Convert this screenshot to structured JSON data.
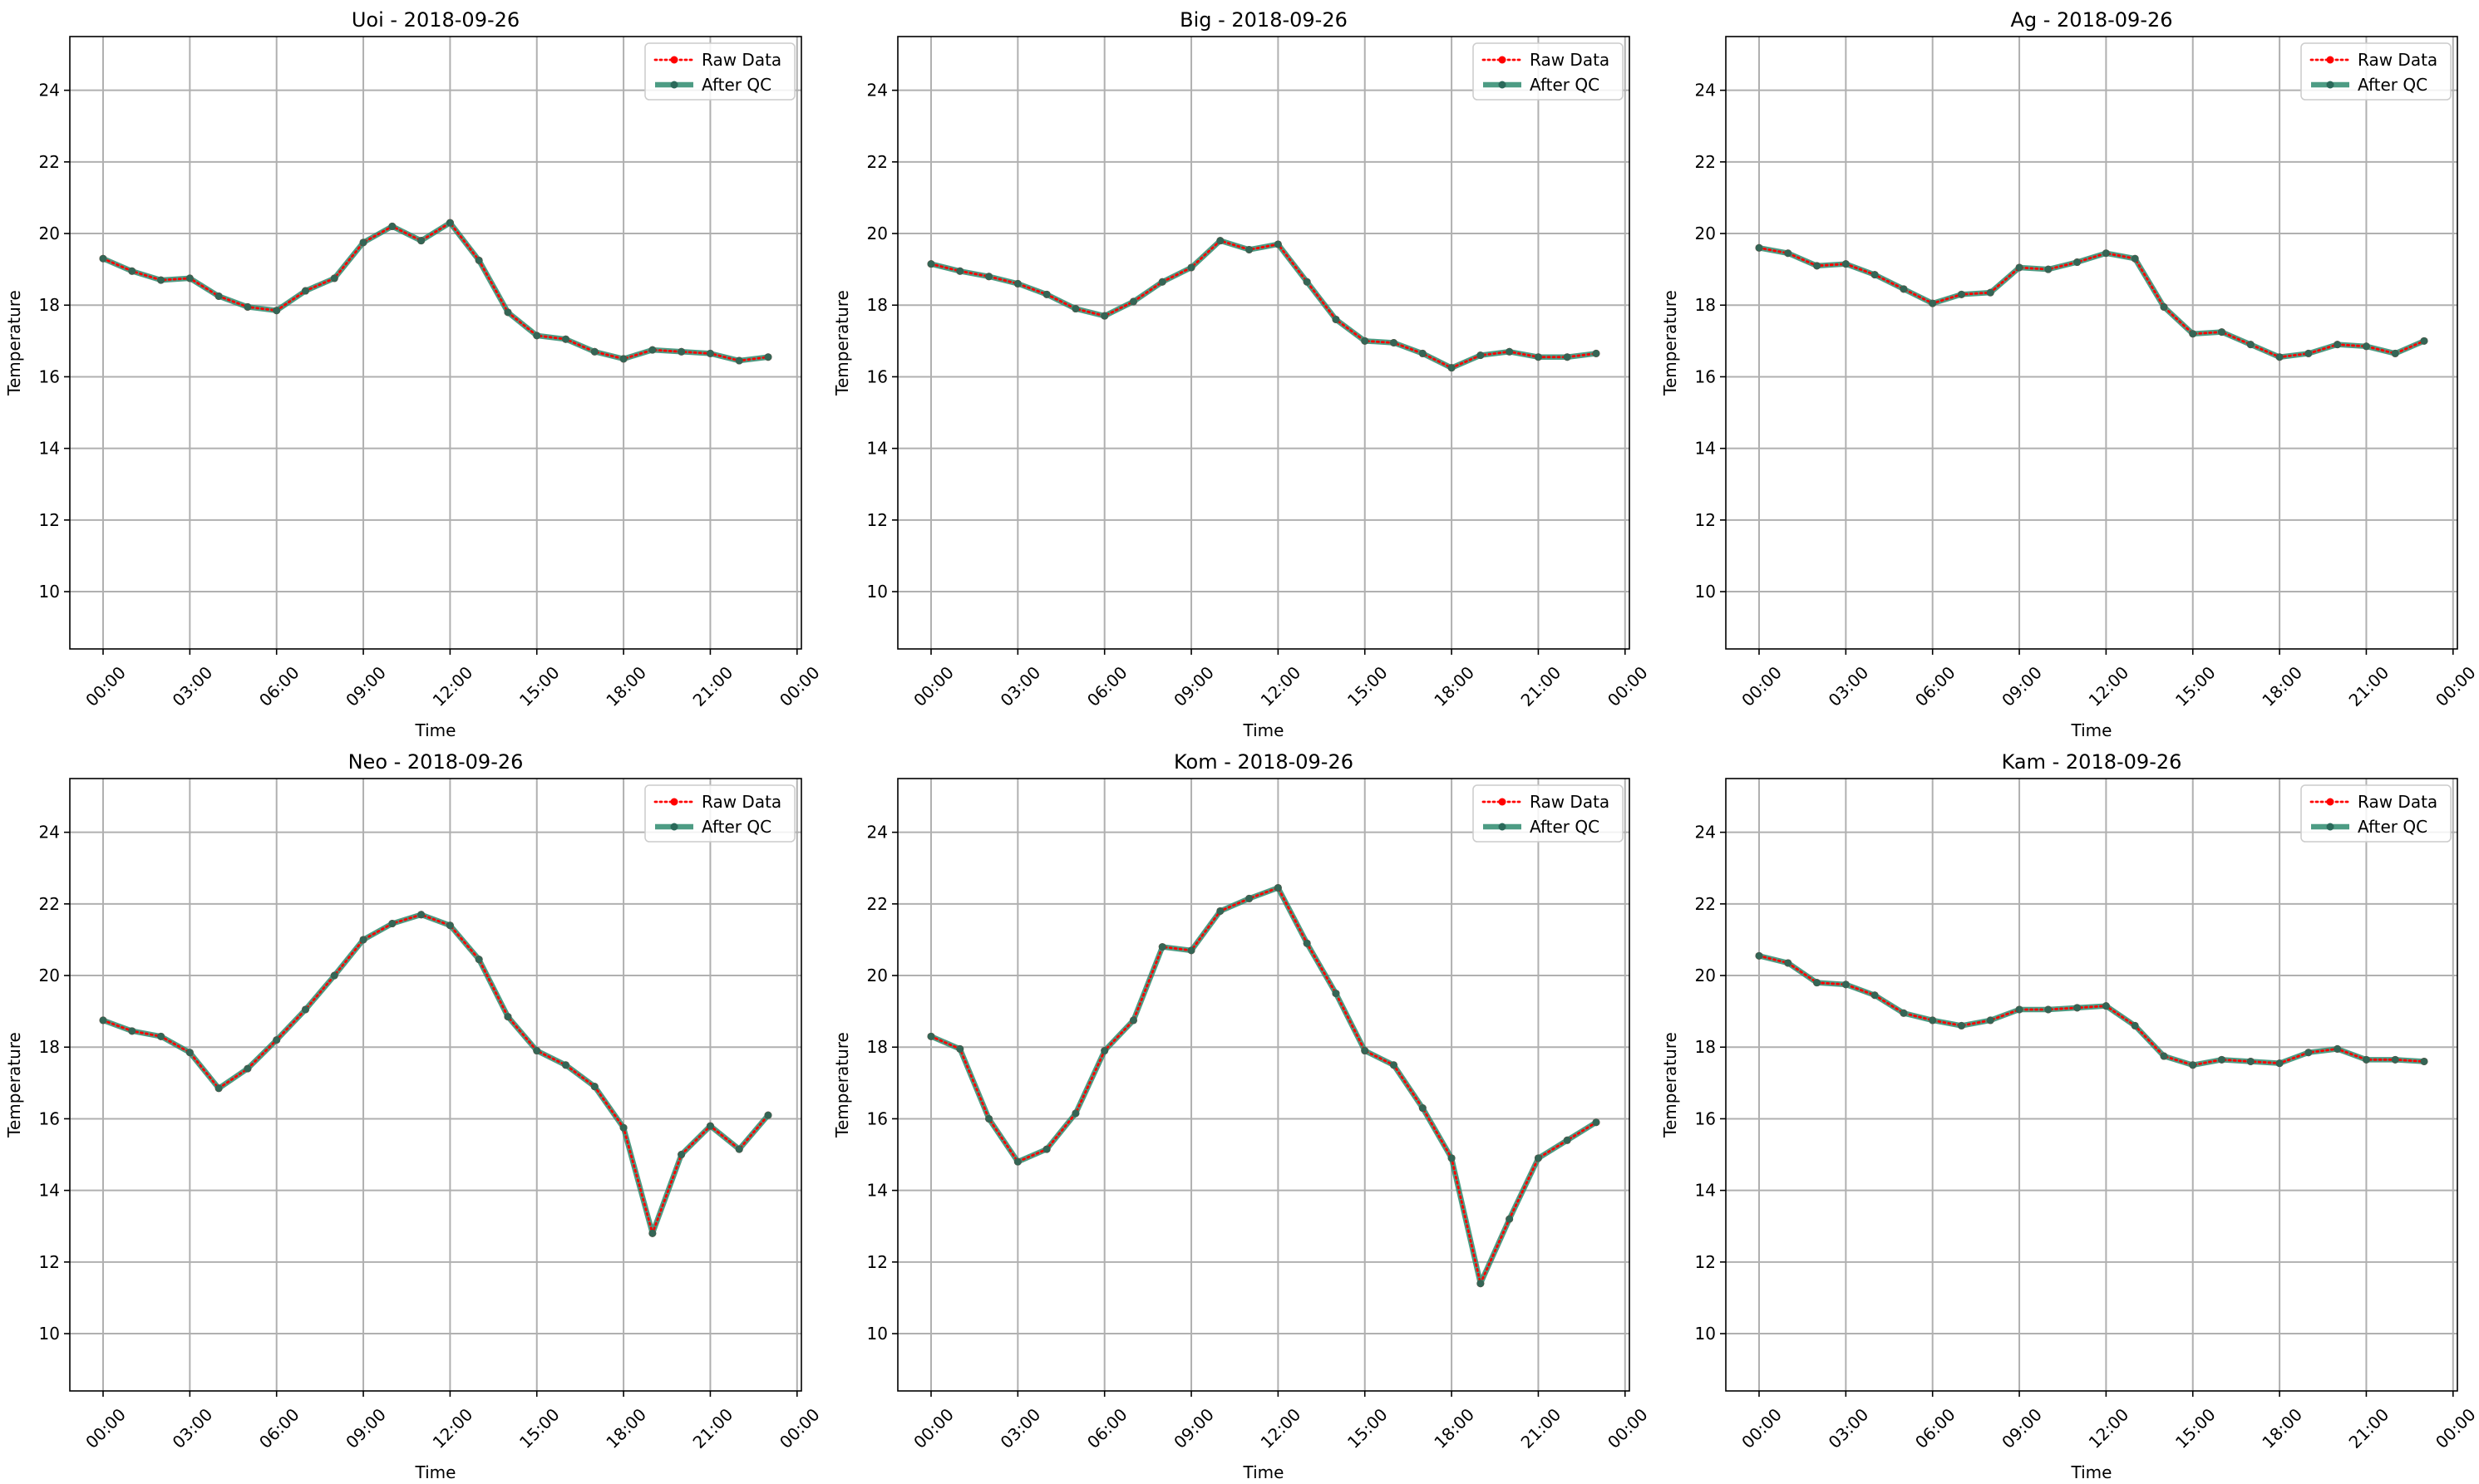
{
  "figure": {
    "panels": [
      "Uoi",
      "Big",
      "Ag",
      "Neo",
      "Kom",
      "Kam"
    ]
  },
  "chart_data": [
    {
      "type": "line",
      "title": "Uoi - 2018-09-26",
      "xlabel": "Time",
      "ylabel": "Temperature",
      "ylim": [
        8.4,
        25.5
      ],
      "xlim_hours": [
        -1.15,
        24.15
      ],
      "yticks": [
        "10",
        "12",
        "14",
        "16",
        "18",
        "20",
        "22",
        "24"
      ],
      "xticks": [
        "00:00",
        "03:00",
        "06:00",
        "09:00",
        "12:00",
        "15:00",
        "18:00",
        "21:00",
        "00:00"
      ],
      "grid": true,
      "legend": {
        "position": "upper-right",
        "entries": [
          "Raw Data",
          "After QC"
        ]
      },
      "x": [
        "00:00",
        "01:00",
        "02:00",
        "03:00",
        "04:00",
        "05:00",
        "06:00",
        "07:00",
        "08:00",
        "09:00",
        "10:00",
        "11:00",
        "12:00",
        "13:00",
        "14:00",
        "15:00",
        "16:00",
        "17:00",
        "18:00",
        "19:00",
        "20:00",
        "21:00",
        "22:00",
        "23:00"
      ],
      "series": [
        {
          "name": "Raw Data",
          "color": "#ff0000",
          "style": "dotted",
          "values": [
            19.3,
            18.95,
            18.7,
            18.75,
            18.25,
            17.95,
            17.85,
            18.4,
            18.75,
            19.75,
            20.2,
            19.8,
            20.3,
            19.25,
            17.8,
            17.15,
            17.05,
            16.7,
            16.5,
            16.75,
            16.7,
            16.65,
            16.45,
            16.55
          ]
        },
        {
          "name": "After QC",
          "color": "#2e8b6e",
          "style": "solid",
          "values": [
            19.3,
            18.95,
            18.7,
            18.75,
            18.25,
            17.95,
            17.85,
            18.4,
            18.75,
            19.75,
            20.2,
            19.8,
            20.3,
            19.25,
            17.8,
            17.15,
            17.05,
            16.7,
            16.5,
            16.75,
            16.7,
            16.65,
            16.45,
            16.55
          ]
        }
      ]
    },
    {
      "type": "line",
      "title": "Big - 2018-09-26",
      "xlabel": "Time",
      "ylabel": "Temperature",
      "ylim": [
        8.4,
        25.5
      ],
      "xlim_hours": [
        -1.15,
        24.15
      ],
      "yticks": [
        "10",
        "12",
        "14",
        "16",
        "18",
        "20",
        "22",
        "24"
      ],
      "xticks": [
        "00:00",
        "03:00",
        "06:00",
        "09:00",
        "12:00",
        "15:00",
        "18:00",
        "21:00",
        "00:00"
      ],
      "grid": true,
      "legend": {
        "position": "upper-right",
        "entries": [
          "Raw Data",
          "After QC"
        ]
      },
      "x": [
        "00:00",
        "01:00",
        "02:00",
        "03:00",
        "04:00",
        "05:00",
        "06:00",
        "07:00",
        "08:00",
        "09:00",
        "10:00",
        "11:00",
        "12:00",
        "13:00",
        "14:00",
        "15:00",
        "16:00",
        "17:00",
        "18:00",
        "19:00",
        "20:00",
        "21:00",
        "22:00",
        "23:00"
      ],
      "series": [
        {
          "name": "Raw Data",
          "color": "#ff0000",
          "style": "dotted",
          "values": [
            19.15,
            18.95,
            18.8,
            18.6,
            18.3,
            17.9,
            17.7,
            18.1,
            18.65,
            19.05,
            19.8,
            19.55,
            19.7,
            18.65,
            17.6,
            17.0,
            16.95,
            16.65,
            16.25,
            16.6,
            16.7,
            16.55,
            16.55,
            16.65
          ]
        },
        {
          "name": "After QC",
          "color": "#2e8b6e",
          "style": "solid",
          "values": [
            19.15,
            18.95,
            18.8,
            18.6,
            18.3,
            17.9,
            17.7,
            18.1,
            18.65,
            19.05,
            19.8,
            19.55,
            19.7,
            18.65,
            17.6,
            17.0,
            16.95,
            16.65,
            16.25,
            16.6,
            16.7,
            16.55,
            16.55,
            16.65
          ]
        }
      ]
    },
    {
      "type": "line",
      "title": "Ag - 2018-09-26",
      "xlabel": "Time",
      "ylabel": "Temperature",
      "ylim": [
        8.4,
        25.5
      ],
      "xlim_hours": [
        -1.15,
        24.15
      ],
      "yticks": [
        "10",
        "12",
        "14",
        "16",
        "18",
        "20",
        "22",
        "24"
      ],
      "xticks": [
        "00:00",
        "03:00",
        "06:00",
        "09:00",
        "12:00",
        "15:00",
        "18:00",
        "21:00",
        "00:00"
      ],
      "grid": true,
      "legend": {
        "position": "upper-right",
        "entries": [
          "Raw Data",
          "After QC"
        ]
      },
      "x": [
        "00:00",
        "01:00",
        "02:00",
        "03:00",
        "04:00",
        "05:00",
        "06:00",
        "07:00",
        "08:00",
        "09:00",
        "10:00",
        "11:00",
        "12:00",
        "13:00",
        "14:00",
        "15:00",
        "16:00",
        "17:00",
        "18:00",
        "19:00",
        "20:00",
        "21:00",
        "22:00",
        "23:00"
      ],
      "series": [
        {
          "name": "Raw Data",
          "color": "#ff0000",
          "style": "dotted",
          "values": [
            19.6,
            19.45,
            19.1,
            19.15,
            18.85,
            18.45,
            18.05,
            18.3,
            18.35,
            19.05,
            19.0,
            19.2,
            19.45,
            19.3,
            17.95,
            17.2,
            17.25,
            16.9,
            16.55,
            16.65,
            16.9,
            16.85,
            16.65,
            17.0
          ]
        },
        {
          "name": "After QC",
          "color": "#2e8b6e",
          "style": "solid",
          "values": [
            19.6,
            19.45,
            19.1,
            19.15,
            18.85,
            18.45,
            18.05,
            18.3,
            18.35,
            19.05,
            19.0,
            19.2,
            19.45,
            19.3,
            17.95,
            17.2,
            17.25,
            16.9,
            16.55,
            16.65,
            16.9,
            16.85,
            16.65,
            17.0
          ]
        }
      ]
    },
    {
      "type": "line",
      "title": "Neo - 2018-09-26",
      "xlabel": "Time",
      "ylabel": "Temperature",
      "ylim": [
        8.4,
        25.5
      ],
      "xlim_hours": [
        -1.15,
        24.15
      ],
      "yticks": [
        "10",
        "12",
        "14",
        "16",
        "18",
        "20",
        "22",
        "24"
      ],
      "xticks": [
        "00:00",
        "03:00",
        "06:00",
        "09:00",
        "12:00",
        "15:00",
        "18:00",
        "21:00",
        "00:00"
      ],
      "grid": true,
      "legend": {
        "position": "upper-right",
        "entries": [
          "Raw Data",
          "After QC"
        ]
      },
      "x": [
        "00:00",
        "01:00",
        "02:00",
        "03:00",
        "04:00",
        "05:00",
        "06:00",
        "07:00",
        "08:00",
        "09:00",
        "10:00",
        "11:00",
        "12:00",
        "13:00",
        "14:00",
        "15:00",
        "16:00",
        "17:00",
        "18:00",
        "19:00",
        "20:00",
        "21:00",
        "22:00",
        "23:00"
      ],
      "series": [
        {
          "name": "Raw Data",
          "color": "#ff0000",
          "style": "dotted",
          "values": [
            18.75,
            18.45,
            18.3,
            17.85,
            16.85,
            17.4,
            18.2,
            19.05,
            20.0,
            21.0,
            21.45,
            21.7,
            21.4,
            20.45,
            18.85,
            17.9,
            17.5,
            16.9,
            15.75,
            12.8,
            15.0,
            15.8,
            15.15,
            16.1
          ]
        },
        {
          "name": "After QC",
          "color": "#2e8b6e",
          "style": "solid",
          "values": [
            18.75,
            18.45,
            18.3,
            17.85,
            16.85,
            17.4,
            18.2,
            19.05,
            20.0,
            21.0,
            21.45,
            21.7,
            21.4,
            20.45,
            18.85,
            17.9,
            17.5,
            16.9,
            15.75,
            12.8,
            15.0,
            15.8,
            15.15,
            16.1
          ]
        }
      ]
    },
    {
      "type": "line",
      "title": "Kom - 2018-09-26",
      "xlabel": "Time",
      "ylabel": "Temperature",
      "ylim": [
        8.4,
        25.5
      ],
      "xlim_hours": [
        -1.15,
        24.15
      ],
      "yticks": [
        "10",
        "12",
        "14",
        "16",
        "18",
        "20",
        "22",
        "24"
      ],
      "xticks": [
        "00:00",
        "03:00",
        "06:00",
        "09:00",
        "12:00",
        "15:00",
        "18:00",
        "21:00",
        "00:00"
      ],
      "grid": true,
      "legend": {
        "position": "upper-right",
        "entries": [
          "Raw Data",
          "After QC"
        ]
      },
      "x": [
        "00:00",
        "01:00",
        "02:00",
        "03:00",
        "04:00",
        "05:00",
        "06:00",
        "07:00",
        "08:00",
        "09:00",
        "10:00",
        "11:00",
        "12:00",
        "13:00",
        "14:00",
        "15:00",
        "16:00",
        "17:00",
        "18:00",
        "19:00",
        "20:00",
        "21:00",
        "22:00",
        "23:00"
      ],
      "series": [
        {
          "name": "Raw Data",
          "color": "#ff0000",
          "style": "dotted",
          "values": [
            18.3,
            17.95,
            16.0,
            14.8,
            15.15,
            16.15,
            17.9,
            18.75,
            20.8,
            20.7,
            21.8,
            22.15,
            22.45,
            20.9,
            19.5,
            17.9,
            17.5,
            16.3,
            14.9,
            11.4,
            13.2,
            14.9,
            15.4,
            15.9
          ]
        },
        {
          "name": "After QC",
          "color": "#2e8b6e",
          "style": "solid",
          "values": [
            18.3,
            17.95,
            16.0,
            14.8,
            15.15,
            16.15,
            17.9,
            18.75,
            20.8,
            20.7,
            21.8,
            22.15,
            22.45,
            20.9,
            19.5,
            17.9,
            17.5,
            16.3,
            14.9,
            11.4,
            13.2,
            14.9,
            15.4,
            15.9
          ]
        }
      ]
    },
    {
      "type": "line",
      "title": "Kam - 2018-09-26",
      "xlabel": "Time",
      "ylabel": "Temperature",
      "ylim": [
        8.4,
        25.5
      ],
      "xlim_hours": [
        -1.15,
        24.15
      ],
      "yticks": [
        "10",
        "12",
        "14",
        "16",
        "18",
        "20",
        "22",
        "24"
      ],
      "xticks": [
        "00:00",
        "03:00",
        "06:00",
        "09:00",
        "12:00",
        "15:00",
        "18:00",
        "21:00",
        "00:00"
      ],
      "grid": true,
      "legend": {
        "position": "upper-right",
        "entries": [
          "Raw Data",
          "After QC"
        ]
      },
      "x": [
        "00:00",
        "01:00",
        "02:00",
        "03:00",
        "04:00",
        "05:00",
        "06:00",
        "07:00",
        "08:00",
        "09:00",
        "10:00",
        "11:00",
        "12:00",
        "13:00",
        "14:00",
        "15:00",
        "16:00",
        "17:00",
        "18:00",
        "19:00",
        "20:00",
        "21:00",
        "22:00",
        "23:00"
      ],
      "series": [
        {
          "name": "Raw Data",
          "color": "#ff0000",
          "style": "dotted",
          "values": [
            20.55,
            20.35,
            19.8,
            19.75,
            19.45,
            18.95,
            18.75,
            18.6,
            18.75,
            19.05,
            19.05,
            19.1,
            19.15,
            18.6,
            17.75,
            17.5,
            17.65,
            17.6,
            17.55,
            17.85,
            17.95,
            17.65,
            17.65,
            17.6
          ]
        },
        {
          "name": "After QC",
          "color": "#2e8b6e",
          "style": "solid",
          "values": [
            20.55,
            20.35,
            19.8,
            19.75,
            19.45,
            18.95,
            18.75,
            18.6,
            18.75,
            19.05,
            19.05,
            19.1,
            19.15,
            18.6,
            17.75,
            17.5,
            17.65,
            17.6,
            17.55,
            17.85,
            17.95,
            17.65,
            17.65,
            17.6
          ]
        }
      ]
    }
  ]
}
